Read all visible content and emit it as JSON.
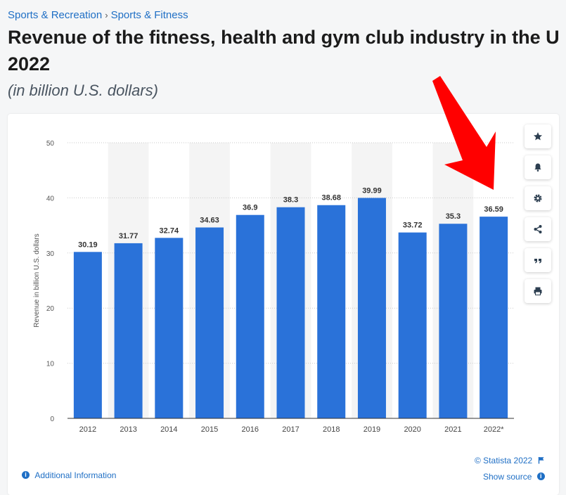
{
  "breadcrumb": {
    "item1": "Sports & Recreation",
    "separator": "›",
    "item2": "Sports & Fitness"
  },
  "title_line1": "Revenue of the fitness, health and gym club industry in the U",
  "title_line2": "2022",
  "subtitle": "(in billion U.S. dollars)",
  "toolbar": {
    "icons": [
      "star-icon",
      "bell-icon",
      "gear-icon",
      "share-icon",
      "quote-icon",
      "print-icon"
    ]
  },
  "footer": {
    "copyright": "© Statista 2022",
    "additional_info": "Additional Information",
    "show_source": "Show source"
  },
  "colors": {
    "bar": "#2a72d9",
    "link": "#1f6fc5",
    "arrow": "#ff0000"
  },
  "chart_data": {
    "type": "bar",
    "categories": [
      "2012",
      "2013",
      "2014",
      "2015",
      "2016",
      "2017",
      "2018",
      "2019",
      "2020",
      "2021",
      "2022*"
    ],
    "values": [
      30.19,
      31.77,
      32.74,
      34.63,
      36.9,
      38.3,
      38.68,
      39.99,
      33.72,
      35.3,
      36.59
    ],
    "value_labels": [
      "30.19",
      "31.77",
      "32.74",
      "34.63",
      "36.9",
      "38.3",
      "38.68",
      "39.99",
      "33.72",
      "35.3",
      "36.59"
    ],
    "ylabel": "Revenue in billion U.S. dollars",
    "xlabel": "",
    "ylim": [
      0,
      50
    ],
    "yticks": [
      0,
      10,
      20,
      30,
      40,
      50
    ],
    "ytick_labels": [
      "0",
      "10",
      "20",
      "30",
      "40",
      "50"
    ],
    "grid": true
  }
}
